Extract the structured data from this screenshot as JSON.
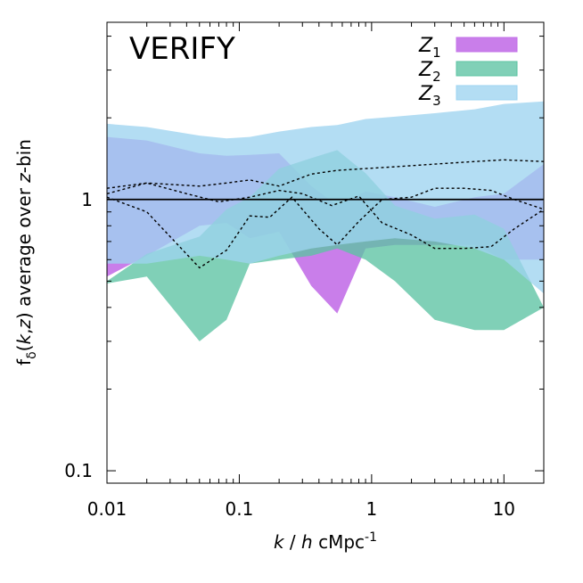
{
  "chart_data": {
    "type": "area",
    "title": "VERIFY",
    "xlabel_parts": [
      "k",
      " / ",
      "h",
      " cMpc",
      "-1"
    ],
    "ylabel_parts": [
      "f",
      "δ",
      "(",
      "k",
      ",",
      "z",
      ") average over ",
      "z",
      "-bin"
    ],
    "x_scale": "log",
    "y_scale": "log",
    "xlim": [
      0.01,
      20
    ],
    "ylim": [
      0.09,
      4.5
    ],
    "x_ticks": [
      0.01,
      0.1,
      1,
      10
    ],
    "x_tick_labels": [
      "0.01",
      "0.1",
      "1",
      "10"
    ],
    "y_ticks": [
      0.1,
      1
    ],
    "y_tick_labels": [
      "0.1",
      "1"
    ],
    "grid": false,
    "legend_position": "top-right",
    "reference_line": 1,
    "series": [
      {
        "name": "Z",
        "subscript": "1",
        "color": "#c473e8",
        "opacity": 0.92,
        "x": [
          0.01,
          0.02,
          0.05,
          0.08,
          0.12,
          0.2,
          0.35,
          0.55,
          0.9,
          1.5,
          3,
          6,
          10,
          20
        ],
        "upper": [
          1.7,
          1.65,
          1.48,
          1.45,
          1.46,
          1.48,
          1.12,
          0.95,
          1.07,
          1.02,
          0.94,
          1.02,
          1.05,
          1.35
        ],
        "lower": [
          0.52,
          0.62,
          0.8,
          0.82,
          0.72,
          0.76,
          0.48,
          0.38,
          0.66,
          0.68,
          0.68,
          0.68,
          0.6,
          0.6
        ]
      },
      {
        "name": "Z",
        "subscript": "2",
        "color": "#5cc3a3",
        "opacity": 0.78,
        "x": [
          0.01,
          0.02,
          0.05,
          0.08,
          0.12,
          0.2,
          0.35,
          0.55,
          0.9,
          1.5,
          3,
          6,
          10,
          20
        ],
        "upper": [
          0.5,
          0.63,
          0.73,
          0.92,
          1.02,
          1.3,
          1.42,
          1.52,
          1.25,
          0.95,
          0.85,
          0.88,
          0.78,
          0.4
        ],
        "lower": [
          0.49,
          0.52,
          0.3,
          0.36,
          0.58,
          0.6,
          0.62,
          0.66,
          0.6,
          0.5,
          0.36,
          0.33,
          0.33,
          0.4
        ]
      },
      {
        "name": "Z",
        "subscript": "3",
        "color": "#9dd4f0",
        "opacity": 0.78,
        "x": [
          0.01,
          0.02,
          0.05,
          0.08,
          0.12,
          0.2,
          0.35,
          0.55,
          0.9,
          1.5,
          3,
          6,
          10,
          20
        ],
        "upper": [
          1.9,
          1.85,
          1.72,
          1.68,
          1.7,
          1.78,
          1.85,
          1.88,
          1.98,
          2.02,
          2.08,
          2.15,
          2.25,
          2.3
        ],
        "lower": [
          0.58,
          0.58,
          0.62,
          0.6,
          0.58,
          0.62,
          0.66,
          0.68,
          0.7,
          0.72,
          0.7,
          0.66,
          0.6,
          0.45
        ]
      }
    ],
    "dashed_lines": [
      {
        "x": [
          0.01,
          0.02,
          0.05,
          0.08,
          0.12,
          0.2,
          0.35,
          0.55,
          0.9,
          1.5,
          3,
          6,
          10,
          20
        ],
        "y": [
          1.1,
          1.15,
          1.12,
          1.15,
          1.18,
          1.12,
          1.24,
          1.28,
          1.3,
          1.32,
          1.35,
          1.38,
          1.4,
          1.38
        ]
      },
      {
        "x": [
          0.01,
          0.02,
          0.04,
          0.07,
          0.12,
          0.2,
          0.3,
          0.5,
          0.8,
          1.2,
          2,
          3,
          5,
          8,
          12,
          20
        ],
        "y": [
          1.05,
          1.15,
          1.05,
          0.98,
          1.02,
          1.08,
          1.05,
          0.95,
          1.03,
          0.82,
          0.74,
          0.66,
          0.66,
          0.67,
          0.78,
          0.92
        ]
      },
      {
        "x": [
          0.01,
          0.02,
          0.05,
          0.08,
          0.12,
          0.17,
          0.25,
          0.4,
          0.55,
          0.8,
          1.2,
          2,
          3,
          5,
          8,
          12,
          20
        ],
        "y": [
          1.02,
          0.9,
          0.56,
          0.65,
          0.87,
          0.86,
          1.02,
          0.78,
          0.68,
          0.83,
          1.0,
          1.02,
          1.1,
          1.1,
          1.08,
          1.0,
          0.92
        ]
      }
    ]
  }
}
